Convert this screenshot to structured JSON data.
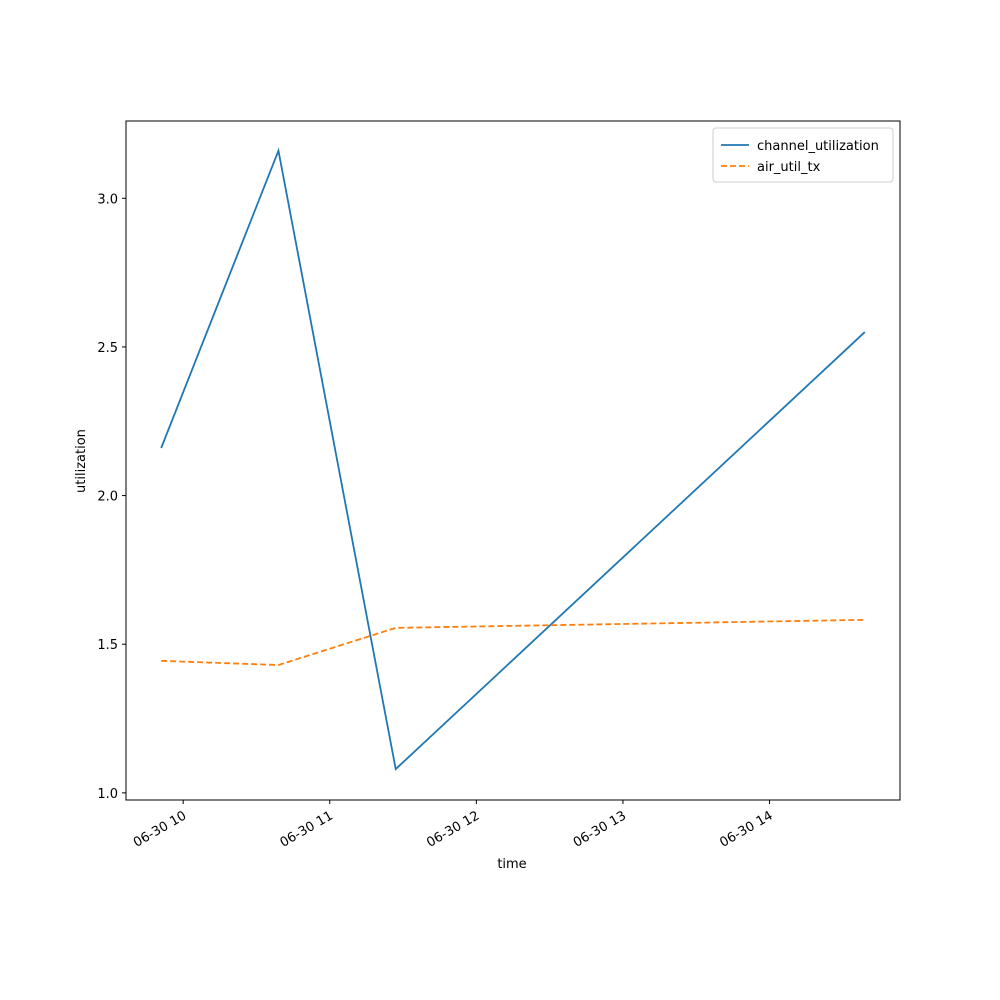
{
  "chart_data": {
    "type": "line",
    "x_label": "time",
    "y_label": "utilization",
    "x": [
      9.85,
      10.65,
      11.45,
      14.65
    ],
    "series": [
      {
        "name": "channel_utilization",
        "color": "#1f77b4",
        "dash": "solid",
        "values": [
          2.16,
          3.16,
          1.08,
          2.55
        ]
      },
      {
        "name": "air_util_tx",
        "color": "#ff7f0e",
        "dash": "dashed",
        "values": [
          1.444,
          1.43,
          1.555,
          1.582
        ]
      }
    ],
    "xlim": [
      9.61,
      14.89
    ],
    "xticks": [
      {
        "value": 10,
        "label": "06-30 10"
      },
      {
        "value": 11,
        "label": "06-30 11"
      },
      {
        "value": 12,
        "label": "06-30 12"
      },
      {
        "value": 13,
        "label": "06-30 13"
      },
      {
        "value": 14,
        "label": "06-30 14"
      }
    ],
    "ylim": [
      0.976,
      3.26
    ],
    "yticks": [
      {
        "value": 1,
        "label": "1.0"
      },
      {
        "value": 1.5,
        "label": "1.5"
      },
      {
        "value": 2,
        "label": "2.0"
      },
      {
        "value": 2.5,
        "label": "2.5"
      },
      {
        "value": 3,
        "label": "3.0"
      }
    ],
    "grid": false,
    "legend": "upper right"
  }
}
